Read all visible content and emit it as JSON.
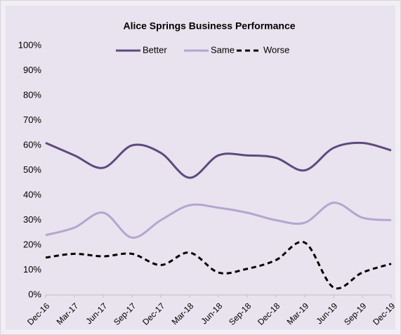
{
  "chart_data": {
    "type": "line",
    "title": "Alice Springs Business Performance",
    "categories": [
      "Dec-16",
      "Mar-17",
      "Jun-17",
      "Sep-17",
      "Dec-17",
      "Mar-18",
      "Jun-18",
      "Sep-18",
      "Dec-18",
      "Mar-19",
      "Jun-19",
      "Sep-19",
      "Dec-19"
    ],
    "series": [
      {
        "name": "Better",
        "color": "#5e4a7e",
        "values": [
          61,
          56,
          51,
          60,
          57,
          47,
          56,
          56,
          55,
          50,
          59,
          61,
          58
        ]
      },
      {
        "name": "Same",
        "color": "#b3a6cf",
        "values": [
          24,
          27,
          33,
          23,
          30,
          36,
          35,
          33,
          30,
          29,
          37,
          31,
          30
        ]
      },
      {
        "name": "Worse",
        "color": "#000000",
        "dashed": true,
        "values": [
          15,
          16.5,
          15.5,
          16.5,
          12,
          17,
          9,
          10.5,
          14,
          21,
          3,
          9,
          12.5
        ]
      }
    ],
    "ylim": [
      0,
      100
    ],
    "yticks": [
      {
        "value": 0,
        "label": "0%"
      },
      {
        "value": 10,
        "label": "10%"
      },
      {
        "value": 20,
        "label": "20%"
      },
      {
        "value": 30,
        "label": "30%"
      },
      {
        "value": 40,
        "label": "40%"
      },
      {
        "value": 50,
        "label": "50%"
      },
      {
        "value": 60,
        "label": "60%"
      },
      {
        "value": 70,
        "label": "70%"
      },
      {
        "value": 80,
        "label": "80%"
      },
      {
        "value": 90,
        "label": "90%"
      },
      {
        "value": 100,
        "label": "100%"
      }
    ],
    "legend": "top",
    "grid": false
  }
}
